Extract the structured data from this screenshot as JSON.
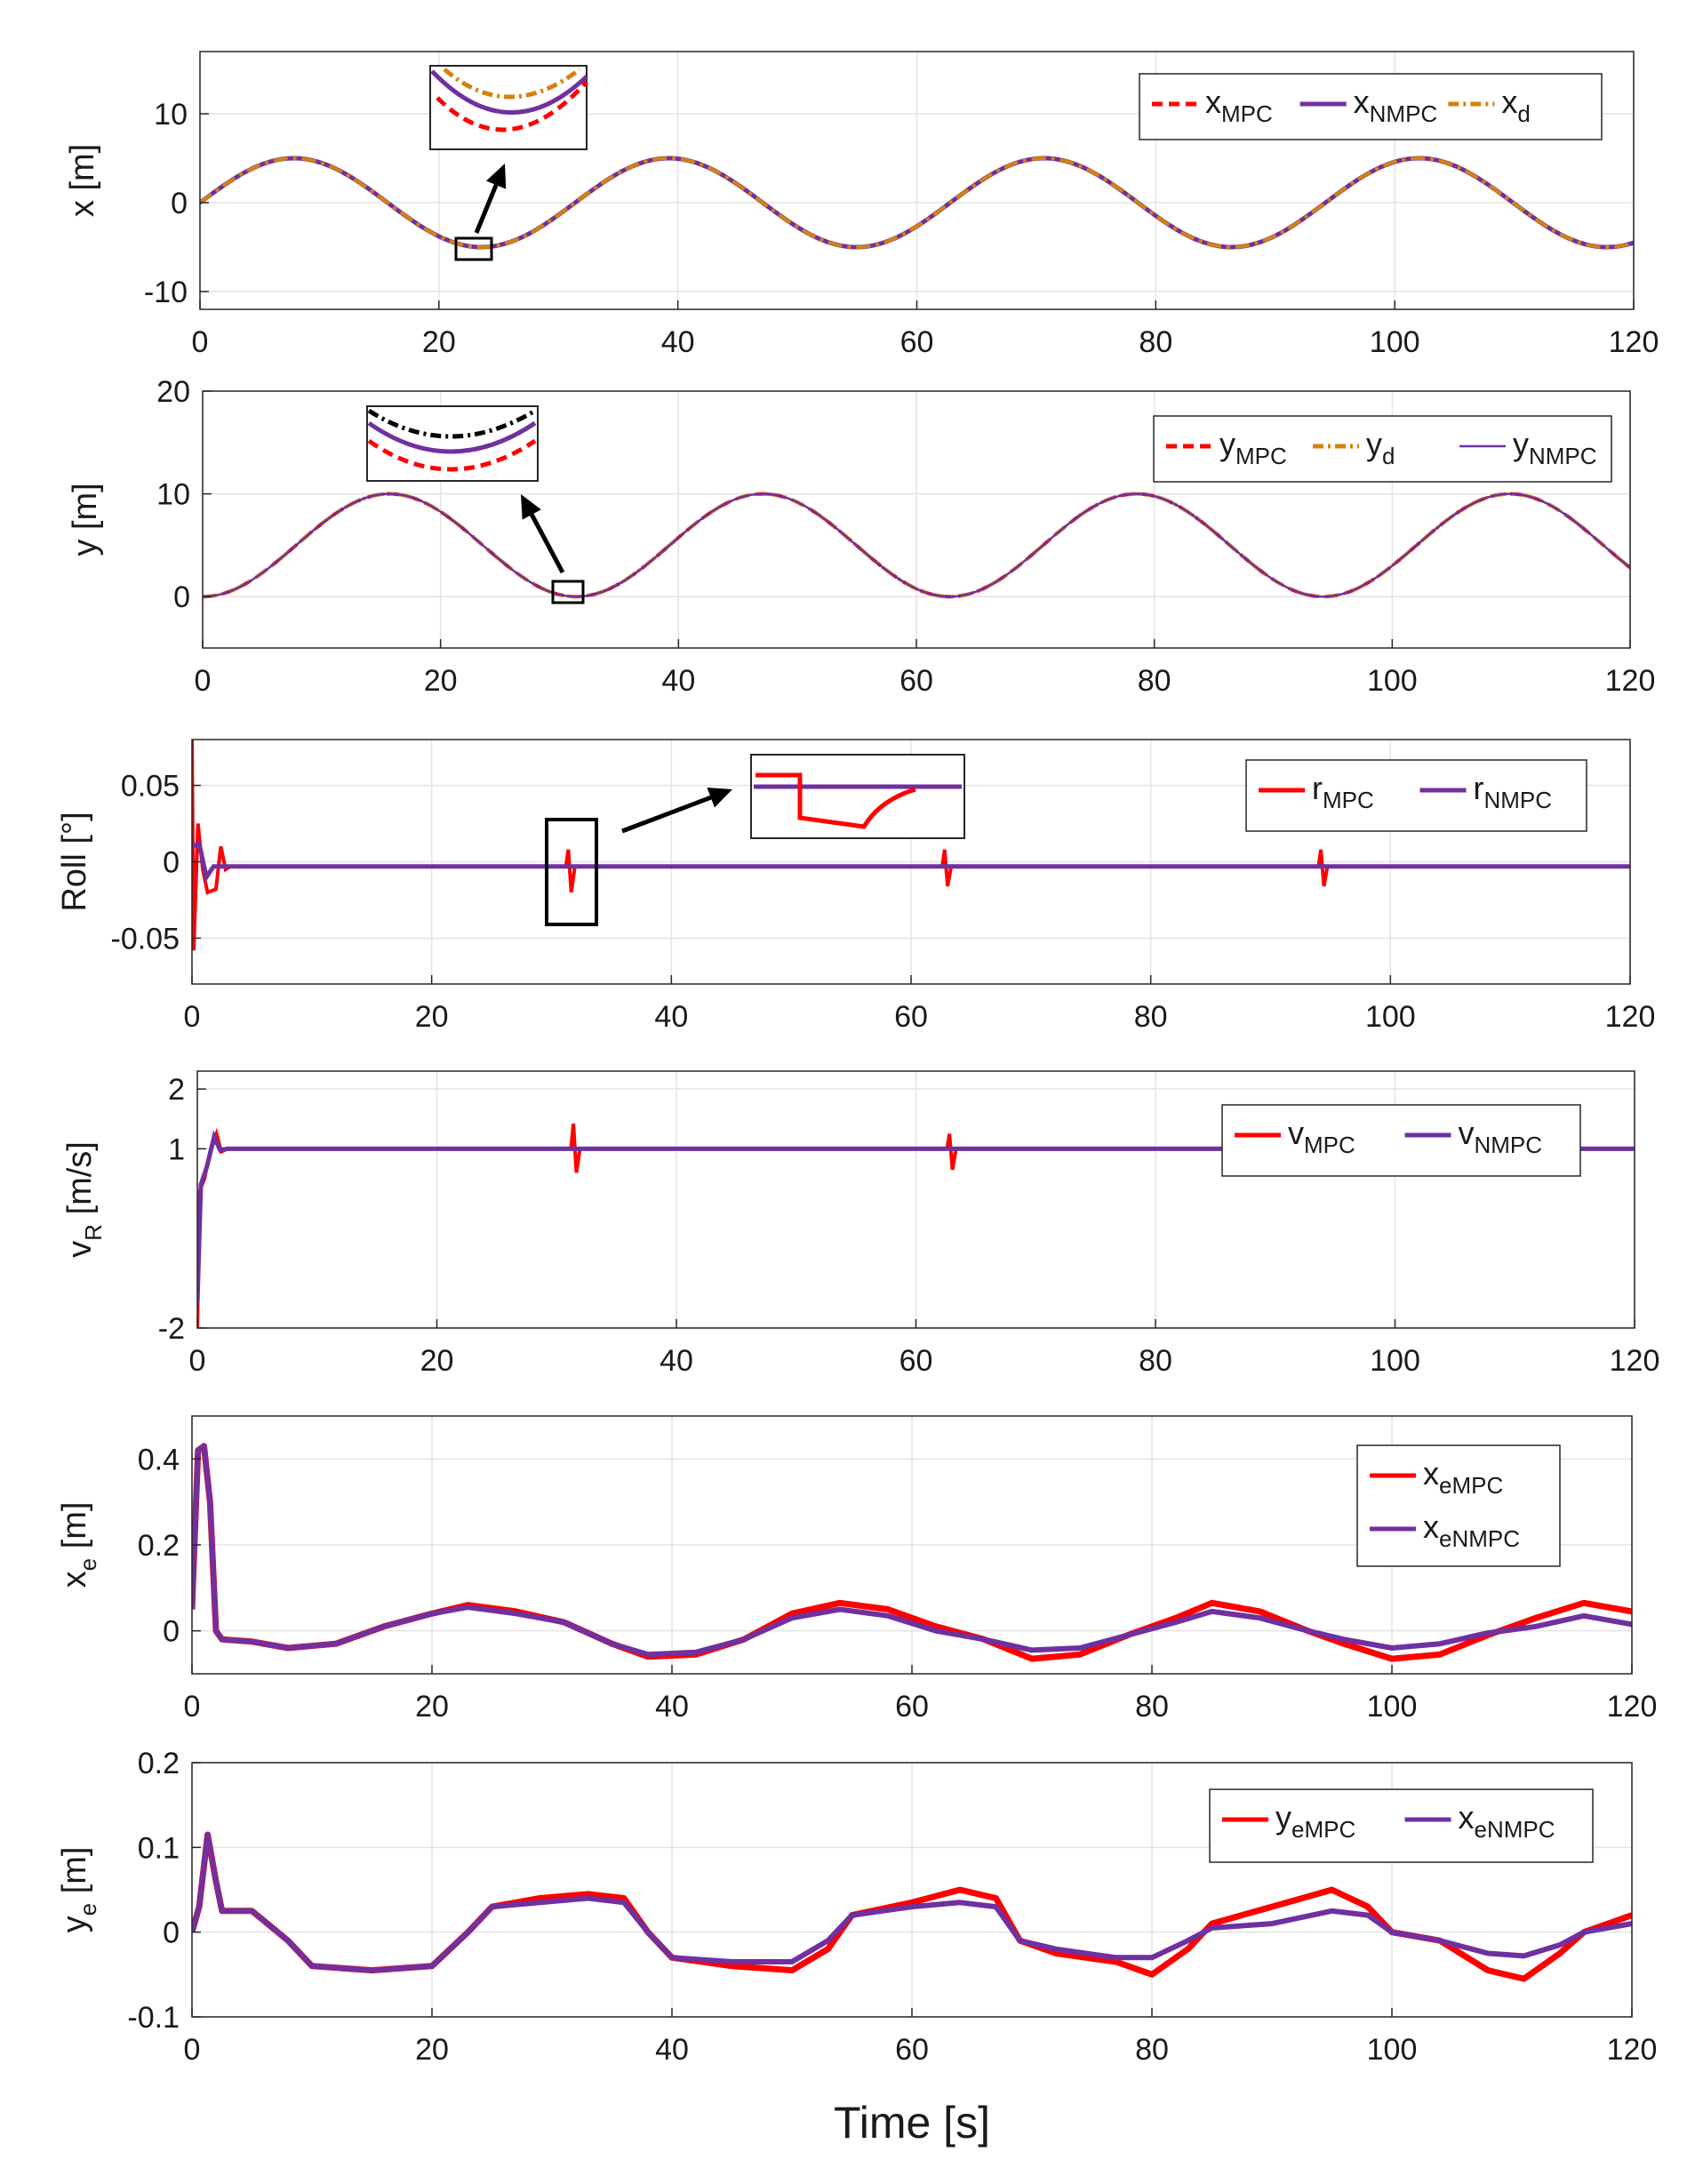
{
  "figure": {
    "xlabel": "Time [s]"
  },
  "colors": {
    "mpc": "#ff0000",
    "nmpc": "#7030a0",
    "desired": "#d4820e",
    "black": "#000000",
    "grid": "#e3e3e3"
  },
  "chart_data": [
    {
      "type": "line",
      "id": "x",
      "ylabel": "x [m]",
      "ylabel_sub": "",
      "xlim": [
        0,
        120
      ],
      "ylim": [
        -12,
        17
      ],
      "xticks": [
        "0",
        "20",
        "40",
        "60",
        "80",
        "100",
        "120"
      ],
      "yticks": [
        {
          "v": 10,
          "t": "10"
        },
        {
          "v": 0,
          "t": "0"
        },
        {
          "v": -10,
          "t": "-10"
        }
      ],
      "legend": [
        {
          "main": "x",
          "sub": "MPC"
        },
        {
          "main": "x",
          "sub": "NMPC"
        },
        {
          "main": "x",
          "sub": "d"
        }
      ],
      "series": [
        {
          "name": "x_MPC",
          "formula": "5*sin(2*pi*t/31.4)",
          "style": "dashed"
        },
        {
          "name": "x_NMPC",
          "formula": "5*sin(2*pi*t/31.4)",
          "style": "solid"
        },
        {
          "name": "x_d",
          "formula": "5*sin(2*pi*t/31.4)",
          "style": "dashdot"
        }
      ]
    },
    {
      "type": "line",
      "id": "y",
      "ylabel": "y [m]",
      "ylabel_sub": "",
      "xlim": [
        0,
        120
      ],
      "ylim": [
        -5,
        20
      ],
      "xticks": [
        "0",
        "20",
        "40",
        "60",
        "80",
        "100",
        "120"
      ],
      "yticks": [
        {
          "v": 20,
          "t": "20"
        },
        {
          "v": 10,
          "t": "10"
        },
        {
          "v": 0,
          "t": "0"
        }
      ],
      "legend": [
        {
          "main": "y",
          "sub": "MPC"
        },
        {
          "main": "y",
          "sub": "d"
        },
        {
          "main": "y",
          "sub": "NMPC"
        }
      ],
      "series": [
        {
          "name": "y_MPC",
          "formula": "5-5*cos(2*pi*t/31.4)",
          "style": "dashed"
        },
        {
          "name": "y_d",
          "formula": "5-5*cos(2*pi*t/31.4)",
          "style": "dashdot"
        },
        {
          "name": "y_NMPC",
          "formula": "5-5*cos(2*pi*t/31.4)",
          "style": "solid-thin"
        }
      ]
    },
    {
      "type": "line",
      "id": "roll",
      "ylabel": "Roll [°]",
      "ylabel_sub": "",
      "xlim": [
        0,
        120
      ],
      "ylim": [
        -0.08,
        0.08
      ],
      "xticks": [
        "0",
        "20",
        "40",
        "60",
        "80",
        "100",
        "120"
      ],
      "yticks": [
        {
          "v": 0.05,
          "t": "0.05"
        },
        {
          "v": 0,
          "t": "0"
        },
        {
          "v": -0.05,
          "t": "-0.05"
        }
      ],
      "legend": [
        {
          "main": "r",
          "sub": "MPC"
        },
        {
          "main": "r",
          "sub": "NMPC"
        }
      ],
      "baseline": -0.003,
      "spikes_mpc": [
        {
          "t": 31.5,
          "lo": -0.02,
          "hi": 0.008
        },
        {
          "t": 62.9,
          "lo": -0.016,
          "hi": 0.008
        },
        {
          "t": 94.3,
          "lo": -0.016,
          "hi": 0.008
        }
      ],
      "start_mpc": [
        [
          0,
          0.082
        ],
        [
          0.15,
          -0.058
        ],
        [
          0.5,
          0.025
        ],
        [
          0.9,
          -0.005
        ],
        [
          1.3,
          -0.02
        ],
        [
          2.0,
          -0.018
        ],
        [
          2.4,
          0.01
        ],
        [
          2.8,
          -0.005
        ],
        [
          3.2,
          -0.003
        ]
      ],
      "start_nmpc": [
        [
          0,
          0.01
        ],
        [
          0.6,
          0.012
        ],
        [
          1.2,
          -0.01
        ],
        [
          1.8,
          -0.003
        ]
      ]
    },
    {
      "type": "line",
      "id": "v",
      "ylabel": "v",
      "ylabel_sub": "R",
      "ylabel_unit": " [m/s]",
      "xlim": [
        0,
        120
      ],
      "ylim": [
        -2,
        2.3
      ],
      "xticks": [
        "0",
        "20",
        "40",
        "60",
        "80",
        "100",
        "120"
      ],
      "yticks": [
        {
          "v": 2,
          "t": "2"
        },
        {
          "v": 1,
          "t": "1"
        },
        {
          "v": -2,
          "t": "-2"
        }
      ],
      "legend": [
        {
          "main": "v",
          "sub": "MPC"
        },
        {
          "main": "v",
          "sub": "NMPC"
        }
      ],
      "baseline": 1.0,
      "spikes_mpc": [
        {
          "t": 31.5,
          "lo": 0.6,
          "hi": 1.42
        },
        {
          "t": 62.9,
          "lo": 0.65,
          "hi": 1.25
        },
        {
          "t": 94.3,
          "lo": 0.65,
          "hi": 1.25
        }
      ],
      "start_mpc": [
        [
          0,
          -2.0
        ],
        [
          0.2,
          0.3
        ],
        [
          0.6,
          0.5
        ],
        [
          1.0,
          0.9
        ],
        [
          1.6,
          1.25
        ],
        [
          2.0,
          0.95
        ],
        [
          2.5,
          1.0
        ]
      ],
      "start_nmpc": [
        [
          0,
          -1.6
        ],
        [
          0.3,
          0.4
        ],
        [
          0.8,
          0.7
        ],
        [
          1.4,
          1.2
        ],
        [
          1.9,
          0.98
        ],
        [
          2.5,
          1.0
        ]
      ]
    },
    {
      "type": "line",
      "id": "xe",
      "ylabel": "x",
      "ylabel_sub": "e",
      "ylabel_unit": " [m]",
      "xlim": [
        0,
        120
      ],
      "ylim": [
        -0.1,
        0.5
      ],
      "xticks": [
        "0",
        "20",
        "40",
        "60",
        "80",
        "100",
        "120"
      ],
      "yticks": [
        {
          "v": 0.4,
          "t": "0.4"
        },
        {
          "v": 0.2,
          "t": "0.2"
        },
        {
          "v": 0,
          "t": "0"
        }
      ],
      "legend": [
        {
          "main": "x",
          "sub": "eMPC"
        },
        {
          "main": "x",
          "sub": "eNMPC"
        }
      ],
      "series_points": [
        {
          "name": "x_eMPC",
          "points": [
            [
              0,
              0.05
            ],
            [
              0.5,
              0.42
            ],
            [
              1.0,
              0.43
            ],
            [
              1.5,
              0.3
            ],
            [
              2.0,
              0.0
            ],
            [
              2.5,
              -0.02
            ],
            [
              5,
              -0.025
            ],
            [
              8,
              -0.04
            ],
            [
              12,
              -0.03
            ],
            [
              16,
              0.01
            ],
            [
              20,
              0.04
            ],
            [
              23,
              0.06
            ],
            [
              27,
              0.045
            ],
            [
              31,
              0.02
            ],
            [
              35,
              -0.03
            ],
            [
              38,
              -0.06
            ],
            [
              42,
              -0.055
            ],
            [
              46,
              -0.02
            ],
            [
              50,
              0.04
            ],
            [
              54,
              0.065
            ],
            [
              58,
              0.05
            ],
            [
              62,
              0.01
            ],
            [
              66,
              -0.02
            ],
            [
              70,
              -0.065
            ],
            [
              74,
              -0.055
            ],
            [
              78,
              -0.01
            ],
            [
              82,
              0.03
            ],
            [
              85,
              0.065
            ],
            [
              89,
              0.045
            ],
            [
              93,
              0.0
            ],
            [
              96,
              -0.03
            ],
            [
              100,
              -0.065
            ],
            [
              104,
              -0.055
            ],
            [
              108,
              -0.01
            ],
            [
              112,
              0.03
            ],
            [
              116,
              0.065
            ],
            [
              120,
              0.045
            ]
          ]
        },
        {
          "name": "x_eNMPC",
          "points": [
            [
              0,
              0.05
            ],
            [
              0.5,
              0.42
            ],
            [
              1.0,
              0.43
            ],
            [
              1.5,
              0.3
            ],
            [
              2.0,
              0.0
            ],
            [
              2.5,
              -0.02
            ],
            [
              5,
              -0.025
            ],
            [
              8,
              -0.04
            ],
            [
              12,
              -0.03
            ],
            [
              16,
              0.01
            ],
            [
              20,
              0.04
            ],
            [
              23,
              0.055
            ],
            [
              27,
              0.04
            ],
            [
              31,
              0.02
            ],
            [
              35,
              -0.03
            ],
            [
              38,
              -0.055
            ],
            [
              42,
              -0.05
            ],
            [
              46,
              -0.02
            ],
            [
              50,
              0.03
            ],
            [
              54,
              0.05
            ],
            [
              58,
              0.035
            ],
            [
              62,
              0.0
            ],
            [
              66,
              -0.02
            ],
            [
              70,
              -0.045
            ],
            [
              74,
              -0.04
            ],
            [
              78,
              -0.01
            ],
            [
              82,
              0.02
            ],
            [
              85,
              0.045
            ],
            [
              89,
              0.03
            ],
            [
              93,
              0.0
            ],
            [
              96,
              -0.02
            ],
            [
              100,
              -0.04
            ],
            [
              104,
              -0.03
            ],
            [
              108,
              -0.005
            ],
            [
              112,
              0.01
            ],
            [
              116,
              0.035
            ],
            [
              120,
              0.015
            ]
          ]
        }
      ]
    },
    {
      "type": "line",
      "id": "ye",
      "ylabel": "y",
      "ylabel_sub": "e",
      "ylabel_unit": " [m]",
      "xlim": [
        0,
        120
      ],
      "ylim": [
        -0.1,
        0.2
      ],
      "xticks": [
        "0",
        "20",
        "40",
        "60",
        "80",
        "100",
        "120"
      ],
      "yticks": [
        {
          "v": 0.2,
          "t": "0.2"
        },
        {
          "v": 0.1,
          "t": "0.1"
        },
        {
          "v": 0,
          "t": "0"
        },
        {
          "v": -0.1,
          "t": "-0.1"
        }
      ],
      "legend": [
        {
          "main": "y",
          "sub": "eMPC"
        },
        {
          "main": "x",
          "sub": "eNMPC"
        }
      ],
      "series_points": [
        {
          "name": "y_eMPC",
          "points": [
            [
              0,
              0.0
            ],
            [
              0.6,
              0.03
            ],
            [
              1.3,
              0.115
            ],
            [
              2.0,
              0.06
            ],
            [
              2.5,
              0.025
            ],
            [
              5,
              0.025
            ],
            [
              8,
              -0.01
            ],
            [
              10,
              -0.04
            ],
            [
              15,
              -0.045
            ],
            [
              20,
              -0.04
            ],
            [
              23,
              -0.0
            ],
            [
              25,
              0.03
            ],
            [
              29,
              0.04
            ],
            [
              33,
              0.045
            ],
            [
              36,
              0.04
            ],
            [
              38,
              0.0
            ],
            [
              40,
              -0.03
            ],
            [
              45,
              -0.04
            ],
            [
              50,
              -0.045
            ],
            [
              53,
              -0.02
            ],
            [
              55,
              0.02
            ],
            [
              60,
              0.035
            ],
            [
              64,
              0.05
            ],
            [
              67,
              0.04
            ],
            [
              69,
              -0.01
            ],
            [
              72,
              -0.025
            ],
            [
              77,
              -0.035
            ],
            [
              80,
              -0.05
            ],
            [
              83,
              -0.02
            ],
            [
              85,
              0.01
            ],
            [
              90,
              0.03
            ],
            [
              95,
              0.05
            ],
            [
              98,
              0.03
            ],
            [
              100,
              0.0
            ],
            [
              104,
              -0.01
            ],
            [
              108,
              -0.045
            ],
            [
              111,
              -0.055
            ],
            [
              114,
              -0.025
            ],
            [
              116,
              0.0
            ],
            [
              120,
              0.02
            ]
          ]
        },
        {
          "name": "x_eNMPC",
          "points": [
            [
              0,
              0.0
            ],
            [
              0.6,
              0.03
            ],
            [
              1.3,
              0.115
            ],
            [
              2.0,
              0.06
            ],
            [
              2.5,
              0.025
            ],
            [
              5,
              0.025
            ],
            [
              8,
              -0.01
            ],
            [
              10,
              -0.04
            ],
            [
              15,
              -0.045
            ],
            [
              20,
              -0.04
            ],
            [
              23,
              -0.0
            ],
            [
              25,
              0.03
            ],
            [
              29,
              0.035
            ],
            [
              33,
              0.04
            ],
            [
              36,
              0.035
            ],
            [
              38,
              0.0
            ],
            [
              40,
              -0.03
            ],
            [
              45,
              -0.035
            ],
            [
              50,
              -0.035
            ],
            [
              53,
              -0.01
            ],
            [
              55,
              0.02
            ],
            [
              60,
              0.03
            ],
            [
              64,
              0.035
            ],
            [
              67,
              0.03
            ],
            [
              69,
              -0.01
            ],
            [
              72,
              -0.02
            ],
            [
              77,
              -0.03
            ],
            [
              80,
              -0.03
            ],
            [
              83,
              -0.01
            ],
            [
              85,
              0.005
            ],
            [
              90,
              0.01
            ],
            [
              95,
              0.025
            ],
            [
              98,
              0.02
            ],
            [
              100,
              0.0
            ],
            [
              104,
              -0.01
            ],
            [
              108,
              -0.025
            ],
            [
              111,
              -0.028
            ],
            [
              114,
              -0.015
            ],
            [
              116,
              0.0
            ],
            [
              120,
              0.01
            ]
          ]
        }
      ]
    }
  ]
}
